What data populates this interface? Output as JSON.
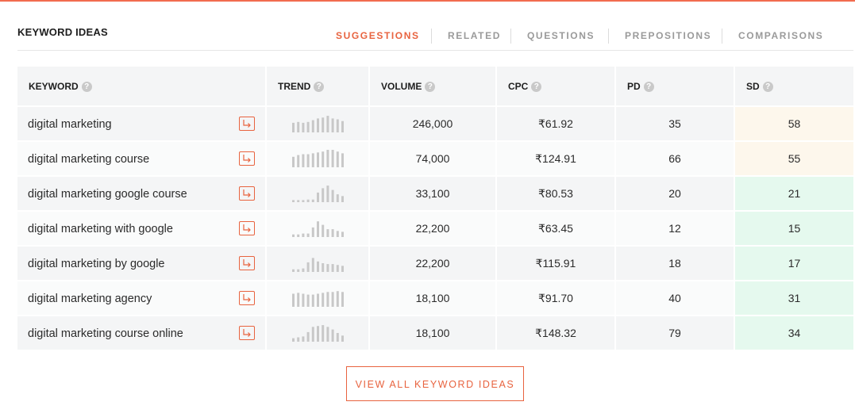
{
  "section": {
    "title": "KEYWORD IDEAS"
  },
  "tabs": [
    {
      "label": "SUGGESTIONS",
      "active": true
    },
    {
      "label": "RELATED",
      "active": false
    },
    {
      "label": "QUESTIONS",
      "active": false
    },
    {
      "label": "PREPOSITIONS",
      "active": false
    },
    {
      "label": "COMPARISONS",
      "active": false
    }
  ],
  "table": {
    "headers": [
      "KEYWORD",
      "TREND",
      "VOLUME",
      "CPC",
      "PD",
      "SD"
    ],
    "help_glyph": "?",
    "rows": [
      {
        "keyword": "digital marketing",
        "volume": "246,000",
        "cpc": "₹61.92",
        "pd": "35",
        "sd": "58",
        "sd_level": "mid",
        "trend": [
          0.55,
          0.6,
          0.55,
          0.6,
          0.7,
          0.8,
          0.85,
          0.95,
          0.8,
          0.75,
          0.65
        ]
      },
      {
        "keyword": "digital marketing course",
        "volume": "74,000",
        "cpc": "₹124.91",
        "pd": "66",
        "sd": "55",
        "sd_level": "mid",
        "trend": [
          0.6,
          0.7,
          0.75,
          0.75,
          0.8,
          0.85,
          0.9,
          1.0,
          1.0,
          0.9,
          0.8
        ]
      },
      {
        "keyword": "digital marketing google course",
        "volume": "33,100",
        "cpc": "₹80.53",
        "pd": "20",
        "sd": "21",
        "sd_level": "low",
        "trend": [
          0.12,
          0.12,
          0.12,
          0.15,
          0.15,
          0.55,
          0.8,
          0.95,
          0.7,
          0.45,
          0.35
        ]
      },
      {
        "keyword": "digital marketing with google",
        "volume": "22,200",
        "cpc": "₹63.45",
        "pd": "12",
        "sd": "15",
        "sd_level": "low",
        "trend": [
          0.15,
          0.15,
          0.2,
          0.2,
          0.55,
          0.9,
          0.7,
          0.45,
          0.45,
          0.35,
          0.3
        ]
      },
      {
        "keyword": "digital marketing by google",
        "volume": "22,200",
        "cpc": "₹115.91",
        "pd": "18",
        "sd": "17",
        "sd_level": "low",
        "trend": [
          0.15,
          0.15,
          0.2,
          0.55,
          0.8,
          0.6,
          0.5,
          0.45,
          0.45,
          0.4,
          0.35
        ]
      },
      {
        "keyword": "digital marketing agency",
        "volume": "18,100",
        "cpc": "₹91.70",
        "pd": "40",
        "sd": "31",
        "sd_level": "low",
        "trend": [
          0.75,
          0.8,
          0.75,
          0.7,
          0.7,
          0.75,
          0.8,
          0.85,
          0.85,
          0.9,
          0.85
        ]
      },
      {
        "keyword": "digital marketing course online",
        "volume": "18,100",
        "cpc": "₹148.32",
        "pd": "79",
        "sd": "34",
        "sd_level": "low",
        "trend": [
          0.2,
          0.25,
          0.3,
          0.55,
          0.85,
          0.9,
          0.95,
          0.85,
          0.7,
          0.5,
          0.35
        ]
      }
    ]
  },
  "footer": {
    "view_all_label": "VIEW ALL KEYWORD IDEAS"
  },
  "colors": {
    "accent": "#e8633f",
    "sd_mid_bg": "#fdf7ec",
    "sd_low_bg": "#e5f9ee",
    "trend_bar": "#c8c8c8"
  },
  "icons": {
    "help": "question-circle-icon",
    "go": "arrow-right-icon"
  }
}
